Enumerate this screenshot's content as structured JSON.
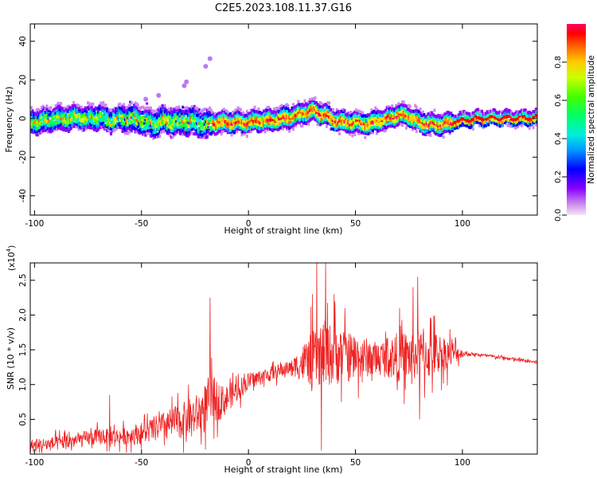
{
  "title": "C2E5.2023.108.11.37.G16",
  "chart_data": [
    {
      "type": "heatmap",
      "xlabel": "Height of straight line (km)",
      "ylabel": "Frequency (Hz)",
      "xlim": [
        -102,
        135
      ],
      "ylim": [
        -50,
        49
      ],
      "xticks": [
        "-100",
        "-50",
        "0",
        "50",
        "100"
      ],
      "yticks": [
        "-40",
        "-20",
        "0",
        "20",
        "40"
      ],
      "colorbar": {
        "label": "Normalized spectral amplitude",
        "range": [
          0,
          1
        ],
        "ticks": [
          "0.0",
          "0.2",
          "0.4",
          "0.6",
          "0.8"
        ]
      },
      "trace": {
        "description": "frequency centroid (Hz) vs height (km) read from ridge",
        "x": [
          -102,
          -95,
          -90,
          -85,
          -80,
          -75,
          -70,
          -65,
          -60,
          -55,
          -50,
          -45,
          -40,
          -35,
          -30,
          -25,
          -20,
          -15,
          -10,
          -5,
          0,
          5,
          10,
          15,
          20,
          25,
          30,
          35,
          40,
          45,
          50,
          55,
          60,
          65,
          70,
          75,
          80,
          85,
          90,
          95,
          100,
          110,
          120,
          135
        ],
        "y": [
          -2,
          -1,
          0,
          0,
          1,
          0,
          1,
          -1,
          0,
          0,
          -1,
          -3,
          -1,
          -2,
          -1,
          -2,
          -3,
          -2,
          -2,
          -2,
          -2,
          -1,
          -1,
          0,
          1,
          3,
          4,
          2,
          -1,
          -2,
          -2,
          -3,
          -1,
          0,
          2,
          1,
          -2,
          -3,
          -3,
          -2,
          -1,
          0,
          0,
          0
        ]
      },
      "outliers": [
        {
          "x": -48,
          "y": 10
        },
        {
          "x": -42,
          "y": 12
        },
        {
          "x": -30,
          "y": 17
        },
        {
          "x": -29,
          "y": 19
        },
        {
          "x": -20,
          "y": 27
        },
        {
          "x": -18,
          "y": 31
        }
      ]
    },
    {
      "type": "line",
      "xlabel": "Height of straight line (km)",
      "ylabel": "SNR (10 * v/v)",
      "yscale_label": "(x10",
      "yscale_exp": "4",
      "yscale_close": ")",
      "xlim": [
        -102,
        135
      ],
      "ylim": [
        0,
        2.75
      ],
      "xticks": [
        "-100",
        "-50",
        "0",
        "50",
        "100"
      ],
      "yticks": [
        "0.5",
        "1.0",
        "1.5",
        "2.0",
        "2.5"
      ],
      "series": [
        {
          "name": "SNR",
          "color": "#ee2222",
          "baseline_x": [
            -102,
            -90,
            -80,
            -70,
            -60,
            -50,
            -40,
            -30,
            -22,
            -18,
            -12,
            -8,
            -4,
            0,
            10,
            20,
            25,
            30,
            35,
            40,
            50,
            60,
            70,
            80,
            90,
            100,
            110,
            120,
            135
          ],
          "baseline_y": [
            0.12,
            0.15,
            0.2,
            0.25,
            0.25,
            0.3,
            0.4,
            0.5,
            0.6,
            0.8,
            0.75,
            0.85,
            0.95,
            1.05,
            1.15,
            1.25,
            1.3,
            1.38,
            1.45,
            1.42,
            1.4,
            1.38,
            1.4,
            1.42,
            1.45,
            1.45,
            1.42,
            1.38,
            1.32
          ],
          "noise_x": [
            -102,
            -80,
            -60,
            -40,
            -25,
            -18,
            -10,
            0,
            20,
            28,
            35,
            60,
            70,
            85,
            95,
            100,
            105,
            135
          ],
          "noise_amp": [
            0.12,
            0.14,
            0.15,
            0.25,
            0.35,
            0.45,
            0.25,
            0.15,
            0.12,
            0.45,
            0.6,
            0.3,
            0.45,
            0.45,
            0.25,
            0.06,
            0.03,
            0.03
          ],
          "peaks": [
            {
              "x": -65,
              "y": 0.85
            },
            {
              "x": -28,
              "y": 1.0
            },
            {
              "x": -18,
              "y": 2.25
            },
            {
              "x": 30,
              "y": 2.3
            },
            {
              "x": 32,
              "y": 2.8
            },
            {
              "x": 34,
              "y": 0.05
            },
            {
              "x": 36,
              "y": 2.75
            },
            {
              "x": 40,
              "y": 2.3
            },
            {
              "x": 45,
              "y": 2.1
            },
            {
              "x": 79,
              "y": 2.55
            },
            {
              "x": 80,
              "y": 0.5
            },
            {
              "x": 77,
              "y": 2.4
            }
          ]
        }
      ]
    }
  ]
}
